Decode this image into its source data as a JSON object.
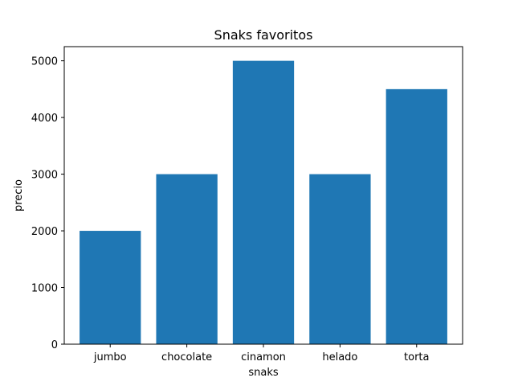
{
  "chart_data": {
    "type": "bar",
    "title": "Snaks favoritos",
    "xlabel": "snaks",
    "ylabel": "precio",
    "categories": [
      "jumbo",
      "chocolate",
      "cinamon",
      "helado",
      "torta"
    ],
    "values": [
      2000,
      3000,
      5000,
      3000,
      4500
    ],
    "ylim": [
      0,
      5250
    ],
    "yticks": [
      0,
      1000,
      2000,
      3000,
      4000,
      5000
    ],
    "bar_color": "#1f77b4",
    "grid": false,
    "legend": "none"
  }
}
